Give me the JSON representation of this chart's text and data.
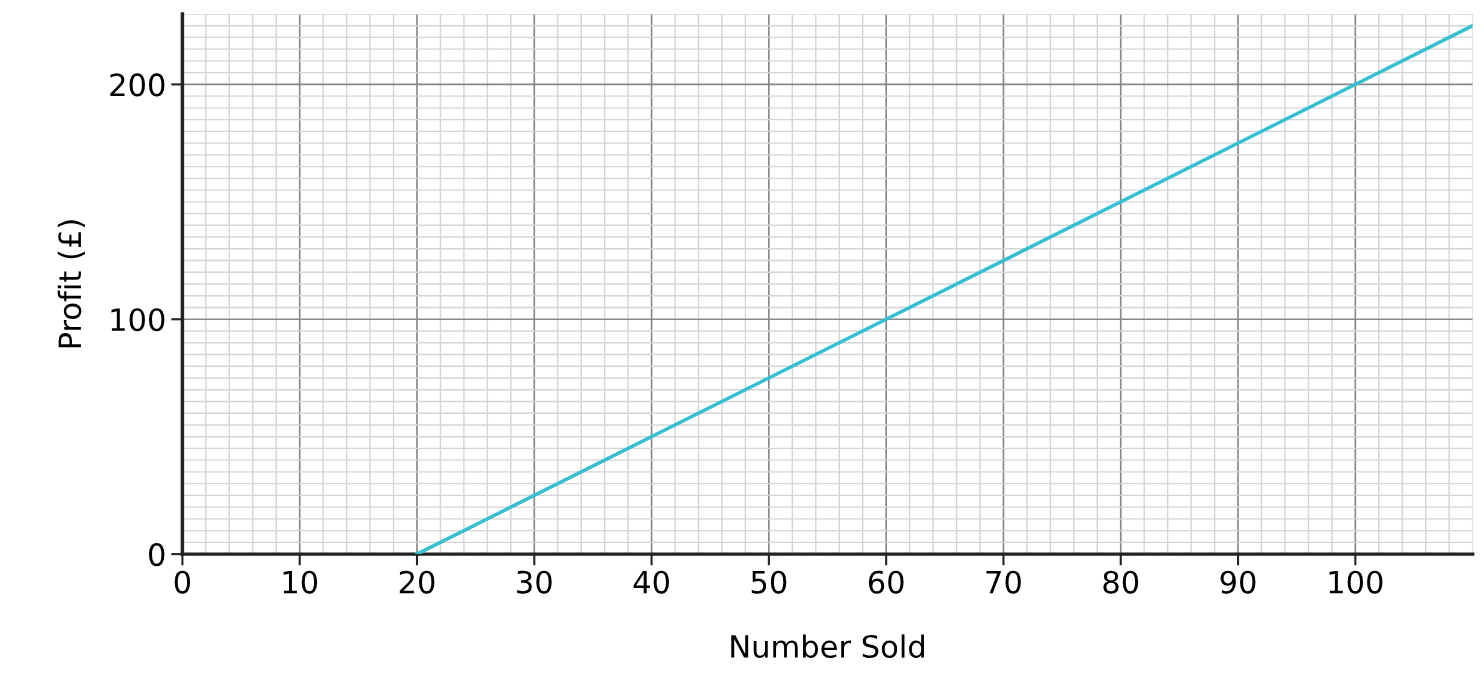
{
  "chart_data": {
    "type": "line",
    "xlabel": "Number Sold",
    "ylabel": "Profit (£)",
    "x": [
      20,
      110
    ],
    "series": [
      {
        "color": "#35bfd3",
        "values": [
          0,
          225
        ]
      }
    ],
    "xlim": [
      0,
      110
    ],
    "ylim": [
      0,
      230
    ],
    "xticks": [
      0,
      10,
      20,
      30,
      40,
      50,
      60,
      70,
      80,
      90,
      100
    ],
    "yticks": [
      0,
      100,
      200
    ],
    "grid": true,
    "marker": "none",
    "line_style": "solid"
  }
}
